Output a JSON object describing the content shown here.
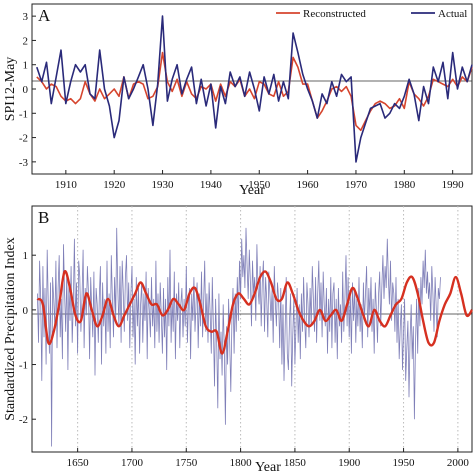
{
  "figure": {
    "colors": {
      "reconstructed": "#d6452e",
      "actual": "#2a2a7a",
      "index": "#7f7fb8",
      "smooth": "#d63020",
      "zero": "#333333",
      "dotted": "#bbbbbb"
    }
  },
  "chart_data": [
    {
      "type": "line",
      "panel_label": "A",
      "xlabel": "Year",
      "ylabel": "SPI12-May",
      "xlim": [
        1903,
        1994
      ],
      "ylim": [
        -3.5,
        3.5
      ],
      "xticks": [
        1910,
        1920,
        1930,
        1940,
        1950,
        1960,
        1970,
        1980,
        1990
      ],
      "yticks": [
        -3,
        -2,
        -1,
        0,
        1,
        2,
        3
      ],
      "legend_position": "top-right",
      "x": [
        1904,
        1905,
        1906,
        1907,
        1908,
        1909,
        1910,
        1911,
        1912,
        1913,
        1914,
        1915,
        1916,
        1917,
        1918,
        1919,
        1920,
        1921,
        1922,
        1923,
        1924,
        1925,
        1926,
        1927,
        1928,
        1929,
        1930,
        1931,
        1932,
        1933,
        1934,
        1935,
        1936,
        1937,
        1938,
        1939,
        1940,
        1941,
        1942,
        1943,
        1944,
        1945,
        1946,
        1947,
        1948,
        1949,
        1950,
        1951,
        1952,
        1953,
        1954,
        1955,
        1956,
        1957,
        1958,
        1959,
        1960,
        1961,
        1962,
        1963,
        1964,
        1965,
        1966,
        1967,
        1968,
        1969,
        1970,
        1971,
        1972,
        1973,
        1974,
        1975,
        1976,
        1977,
        1978,
        1979,
        1980,
        1981,
        1982,
        1983,
        1984,
        1985,
        1986,
        1987,
        1988,
        1989,
        1990,
        1991,
        1992,
        1993,
        1994
      ],
      "series": [
        {
          "name": "Reconstructed",
          "color": "#d6452e",
          "values": [
            0.5,
            0.3,
            0.0,
            0.2,
            0.1,
            -0.3,
            -0.5,
            -0.4,
            -0.6,
            -0.4,
            0.3,
            -0.2,
            -0.5,
            0.0,
            -0.4,
            -0.2,
            0.0,
            -0.3,
            0.5,
            -0.4,
            0.2,
            0.3,
            0.2,
            -0.4,
            -0.3,
            0.1,
            1.5,
            0.3,
            -0.1,
            0.4,
            -0.3,
            0.3,
            -0.2,
            -0.4,
            0.1,
            0.0,
            0.2,
            -0.5,
            0.2,
            -0.3,
            0.3,
            0.1,
            0.4,
            -0.3,
            0.0,
            -0.4,
            0.3,
            0.2,
            -0.2,
            -0.3,
            0.3,
            -0.3,
            -0.1,
            1.3,
            0.9,
            0.2,
            0.2,
            -0.5,
            -1.2,
            -0.9,
            -0.5,
            0.0,
            0.1,
            -0.1,
            0.1,
            -0.3,
            -1.5,
            -1.7,
            -1.3,
            -0.9,
            -0.6,
            -0.5,
            -0.6,
            -0.8,
            -0.7,
            -0.4,
            -0.8,
            0.3,
            -0.2,
            -0.4,
            -0.7,
            -0.3,
            0.4,
            0.3,
            0.2,
            0.1,
            0.4,
            0.1,
            0.5,
            0.3,
            0.9
          ]
        },
        {
          "name": "Actual",
          "color": "#2a2a7a",
          "values": [
            0.9,
            0.3,
            1.1,
            -0.6,
            0.5,
            1.6,
            -0.6,
            0.3,
            1.0,
            0.7,
            1.0,
            -0.2,
            -0.4,
            1.6,
            0.0,
            -0.7,
            -2.0,
            -1.3,
            0.5,
            -0.4,
            0.0,
            0.5,
            1.0,
            0.0,
            -1.5,
            0.2,
            3.0,
            -0.5,
            0.4,
            1.0,
            -0.2,
            0.4,
            0.9,
            -0.6,
            0.4,
            -0.7,
            0.2,
            -1.6,
            0.1,
            -0.6,
            0.7,
            0.1,
            0.5,
            -0.3,
            0.7,
            0.0,
            -0.9,
            0.5,
            -0.2,
            0.6,
            -0.5,
            0.3,
            -0.4,
            2.3,
            1.5,
            0.6,
            0.0,
            -0.5,
            -1.2,
            -0.2,
            -0.6,
            0.3,
            -0.3,
            0.6,
            0.3,
            0.5,
            -3.0,
            -2.0,
            -1.4,
            -0.8,
            -0.7,
            -0.6,
            -1.2,
            -1.0,
            -0.6,
            -0.8,
            -0.3,
            0.4,
            -0.2,
            -1.3,
            0.1,
            -0.6,
            0.9,
            0.3,
            1.1,
            -0.4,
            1.5,
            0.0,
            0.9,
            0.3,
            1.0
          ]
        }
      ]
    },
    {
      "type": "line",
      "panel_label": "B",
      "xlabel": "Year",
      "ylabel": "Standardized Precipitation Index",
      "xlim": [
        1608,
        2013
      ],
      "ylim": [
        -2.6,
        1.9
      ],
      "xticks": [
        1650,
        1700,
        1750,
        1800,
        1850,
        1900,
        1950,
        2000
      ],
      "yticks": [
        -2,
        -1,
        0,
        1
      ],
      "vertical_dotted_lines": [
        1650,
        1700,
        1750,
        1800,
        1850,
        1900,
        1950,
        2000
      ],
      "annual_start_year": 1613,
      "annual_values": [
        0.3,
        -0.6,
        0.9,
        0.2,
        -1.3,
        0.8,
        -0.5,
        0.4,
        -1.0,
        1.1,
        0.1,
        -0.8,
        0.5,
        -2.5,
        0.6,
        0.2,
        -0.3,
        0.9,
        -0.7,
        0.4,
        1.0,
        -0.5,
        0.2,
        -0.9,
        1.2,
        0.3,
        -0.4,
        0.7,
        -1.1,
        0.5,
        -0.2,
        0.8,
        -0.6,
        0.1,
        1.3,
        -0.3,
        0.5,
        -0.8,
        0.9,
        0.6,
        -0.4,
        0.2,
        1.1,
        -0.7,
        0.4,
        -0.1,
        0.8,
        0.3,
        -0.9,
        0.6,
        0.0,
        -0.5,
        0.7,
        -1.2,
        0.4,
        0.1,
        -0.6,
        0.3,
        0.8,
        -1.0,
        0.5,
        -0.3,
        0.2,
        -0.8,
        0.9,
        -0.4,
        0.3,
        -0.7,
        1.0,
        0.2,
        -0.5,
        0.6,
        -0.2,
        1.5,
        0.4,
        -0.3,
        0.8,
        -0.6,
        0.9,
        0.3,
        -0.4,
        0.6,
        1.0,
        -0.2,
        0.5,
        -0.7,
        0.3,
        0.8,
        -0.5,
        0.2,
        -1.0,
        0.6,
        -0.3,
        0.4,
        -0.8,
        0.1,
        0.5,
        -0.6,
        0.3,
        -0.2,
        0.7,
        -0.9,
        0.4,
        0.0,
        -0.5,
        0.6,
        -0.3,
        0.2,
        -0.7,
        0.9,
        -0.4,
        0.3,
        -0.6,
        0.5,
        -0.1,
        -0.8,
        0.4,
        -0.5,
        0.2,
        -1.1,
        0.6,
        -0.3,
        1.1,
        -0.6,
        0.2,
        -0.4,
        0.7,
        -0.9,
        0.3,
        -0.2,
        0.5,
        -0.7,
        0.1,
        0.4,
        -0.5,
        0.2,
        -0.3,
        0.8,
        -0.6,
        0.1,
        0.4,
        -0.9,
        0.3,
        -0.2,
        0.6,
        -0.4,
        0.1,
        0.5,
        -0.7,
        0.3,
        -0.3,
        0.7,
        -0.5,
        0.2,
        0.9,
        -0.4,
        0.3,
        -0.6,
        0.5,
        -0.1,
        -0.8,
        0.6,
        -0.3,
        -1.4,
        0.2,
        -0.6,
        -1.8,
        0.3,
        -0.9,
        -0.4,
        -1.2,
        0.1,
        -0.7,
        -2.1,
        -0.3,
        -1.0,
        0.2,
        -0.6,
        -1.5,
        -0.2,
        0.4,
        -0.8,
        0.3,
        -0.4,
        0.6,
        -0.2,
        0.9,
        0.2,
        1.3,
        0.6,
        1.0,
        0.4,
        1.5,
        0.8,
        0.2,
        1.1,
        0.5,
        -0.3,
        0.9,
        0.3,
        0.6,
        -0.2,
        1.2,
        0.4,
        0.1,
        0.8,
        -0.3,
        0.5,
        0.9,
        -0.4,
        0.6,
        0.2,
        -0.5,
        0.7,
        0.3,
        -0.2,
        0.4,
        -0.6,
        0.8,
        0.1,
        -0.3,
        0.5,
        0.2,
        -0.7,
        0.4,
        -1.0,
        0.1,
        -1.3,
        -0.4,
        0.6,
        -0.8,
        -1.1,
        -0.2,
        0.3,
        -1.4,
        -0.5,
        0.2,
        -1.0,
        -0.3,
        0.4,
        -0.6,
        0.1,
        -0.9,
        0.3,
        -0.4,
        0.6,
        -0.2,
        -0.7,
        0.5,
        0.1,
        -0.5,
        0.4,
        -0.3,
        0.8,
        0.2,
        -0.4,
        0.6,
        -0.6,
        0.3,
        0.9,
        -0.2,
        0.5,
        -0.5,
        0.7,
        0.1,
        -0.3,
        0.4,
        -0.8,
        0.2,
        -0.4,
        0.6,
        -0.7,
        0.3,
        0.5,
        -0.6,
        0.2,
        -0.9,
        0.4,
        -0.3,
        0.1,
        -0.6,
        0.7,
        -0.4,
        0.2,
        1.0,
        -0.3,
        0.6,
        -0.5,
        0.3,
        -0.8,
        0.5,
        -0.2,
        0.4,
        -0.6,
        0.2,
        -0.3,
        0.6,
        -0.4,
        0.1,
        -0.7,
        0.5,
        -0.2,
        0.3,
        0.8,
        -0.5,
        0.4,
        -0.1,
        0.6,
        -0.4,
        0.2,
        -0.8,
        0.5,
        0.0,
        -0.6,
        0.3,
        0.7,
        -0.3,
        0.4,
        1.0,
        0.2,
        0.8,
        0.4,
        1.3,
        0.6,
        0.1,
        0.9,
        -0.2,
        0.5,
        0.3,
        -0.4,
        0.6,
        -0.6,
        0.2,
        -0.9,
        -0.3,
        0.1,
        -1.1,
        -0.4,
        0.2,
        -1.3,
        -0.7,
        -0.2,
        -1.6,
        -0.5,
        0.1,
        -0.9,
        -0.3,
        -2.0,
        -0.6,
        0.2,
        -0.8,
        0.4,
        -0.3,
        0.6,
        0.1,
        0.9,
        0.4,
        1.1,
        0.3,
        0.7,
        0.2,
        0.5,
        -0.2,
        0.8,
        0.3,
        -0.4,
        0.6,
        0.1,
        -0.5,
        0.4,
        0.2,
        0.6
      ],
      "smooth_points": [
        [
          1613,
          0.2
        ],
        [
          1618,
          0.1
        ],
        [
          1623,
          -0.6
        ],
        [
          1628,
          -0.4
        ],
        [
          1633,
          0.1
        ],
        [
          1638,
          0.7
        ],
        [
          1643,
          0.4
        ],
        [
          1648,
          -0.1
        ],
        [
          1653,
          -0.2
        ],
        [
          1658,
          0.3
        ],
        [
          1663,
          0.0
        ],
        [
          1668,
          -0.3
        ],
        [
          1673,
          -0.1
        ],
        [
          1678,
          0.2
        ],
        [
          1683,
          -0.1
        ],
        [
          1688,
          -0.3
        ],
        [
          1693,
          -0.1
        ],
        [
          1698,
          0.1
        ],
        [
          1703,
          0.3
        ],
        [
          1708,
          0.5
        ],
        [
          1713,
          0.3
        ],
        [
          1718,
          0.1
        ],
        [
          1723,
          0.1
        ],
        [
          1728,
          -0.1
        ],
        [
          1733,
          0.0
        ],
        [
          1738,
          0.2
        ],
        [
          1743,
          0.1
        ],
        [
          1748,
          0.0
        ],
        [
          1753,
          0.3
        ],
        [
          1758,
          0.4
        ],
        [
          1763,
          0.1
        ],
        [
          1768,
          -0.3
        ],
        [
          1773,
          -0.4
        ],
        [
          1778,
          -0.4
        ],
        [
          1783,
          -0.8
        ],
        [
          1788,
          -0.4
        ],
        [
          1793,
          0.1
        ],
        [
          1798,
          0.3
        ],
        [
          1803,
          0.2
        ],
        [
          1808,
          0.1
        ],
        [
          1813,
          0.3
        ],
        [
          1818,
          0.6
        ],
        [
          1823,
          0.7
        ],
        [
          1828,
          0.5
        ],
        [
          1833,
          0.2
        ],
        [
          1838,
          0.2
        ],
        [
          1843,
          0.5
        ],
        [
          1848,
          0.3
        ],
        [
          1853,
          0.0
        ],
        [
          1858,
          -0.2
        ],
        [
          1863,
          -0.3
        ],
        [
          1868,
          -0.2
        ],
        [
          1873,
          0.0
        ],
        [
          1878,
          -0.2
        ],
        [
          1883,
          -0.1
        ],
        [
          1888,
          0.0
        ],
        [
          1893,
          -0.2
        ],
        [
          1898,
          0.1
        ],
        [
          1903,
          0.4
        ],
        [
          1908,
          0.2
        ],
        [
          1913,
          -0.1
        ],
        [
          1918,
          -0.3
        ],
        [
          1923,
          0.0
        ],
        [
          1928,
          -0.2
        ],
        [
          1933,
          -0.3
        ],
        [
          1938,
          -0.1
        ],
        [
          1943,
          0.1
        ],
        [
          1948,
          0.2
        ],
        [
          1953,
          0.5
        ],
        [
          1958,
          0.6
        ],
        [
          1963,
          0.3
        ],
        [
          1968,
          -0.2
        ],
        [
          1973,
          -0.6
        ],
        [
          1978,
          -0.6
        ],
        [
          1983,
          -0.2
        ],
        [
          1988,
          0.1
        ],
        [
          1993,
          0.3
        ],
        [
          1998,
          0.6
        ],
        [
          2003,
          0.3
        ],
        [
          2008,
          -0.1
        ],
        [
          2013,
          0.0
        ]
      ]
    }
  ]
}
